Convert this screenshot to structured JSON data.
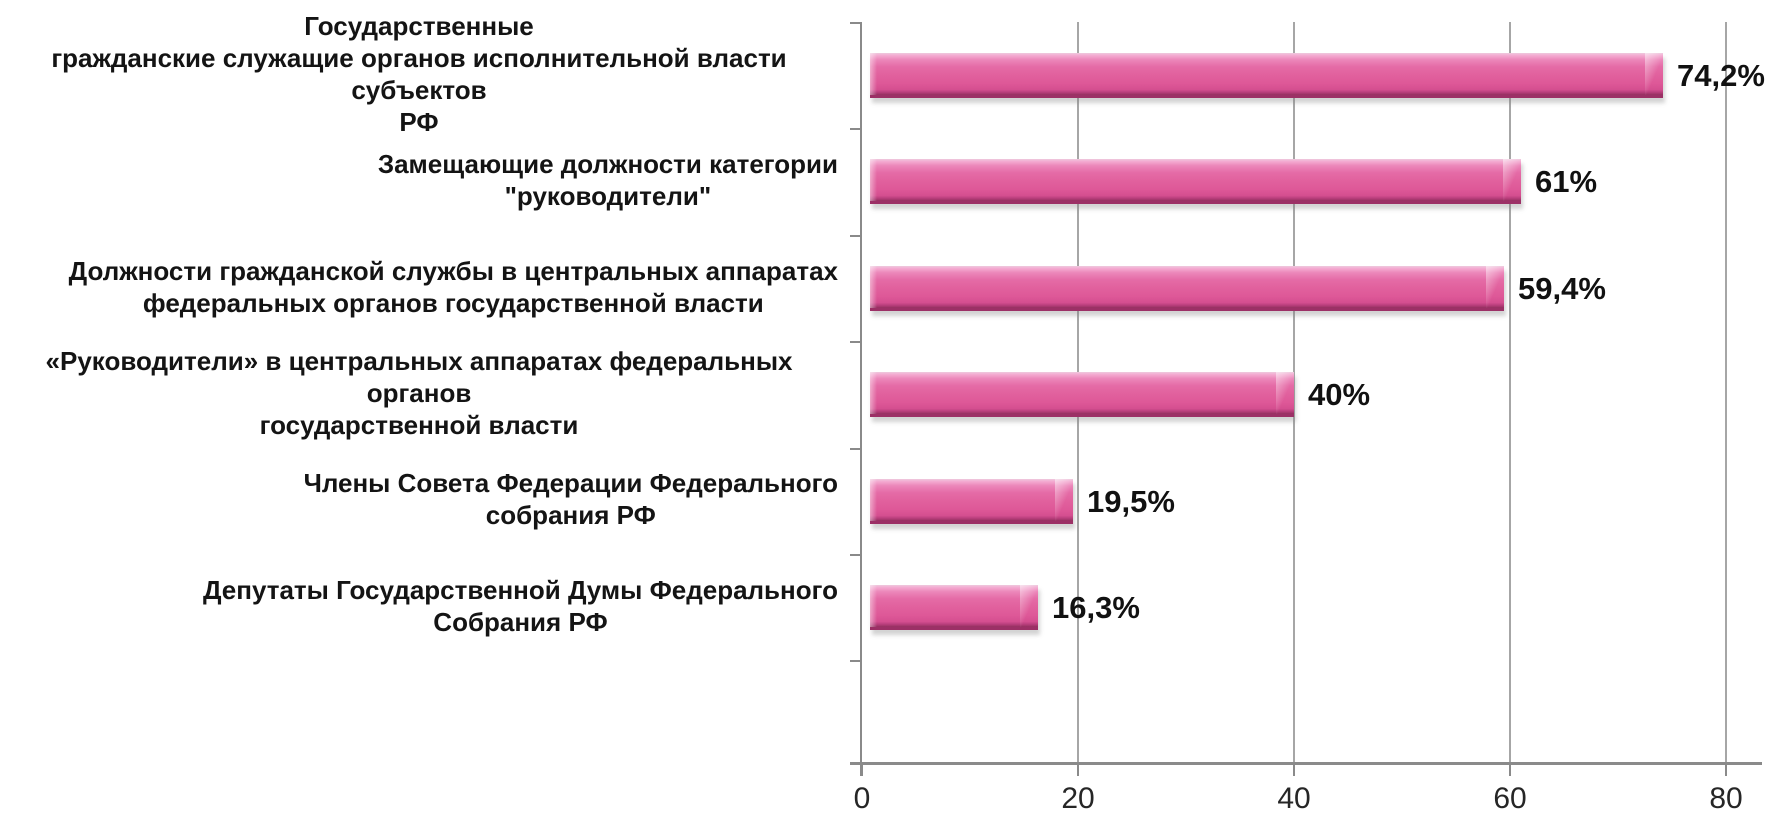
{
  "chart_data": {
    "type": "bar",
    "orientation": "horizontal",
    "title": "",
    "xlabel": "",
    "ylabel": "",
    "xlim": [
      0,
      80
    ],
    "grid": "vertical",
    "legend": "none",
    "bar_color": "#e2639f",
    "bar_edge_color": "#9c3066",
    "gridline_color": "#a6a6a6",
    "axis_color": "#8a8a8a",
    "categories": [
      "Государственные гражданские служащие органов исполнительной власти субъектов РФ",
      "Замещающие должности категории \"руководители\"",
      "Должности гражданской службы в центральных аппаратах федеральных органов государственной власти",
      "«Руководители» в центральных аппаратах федеральных органов государственной власти",
      "Члены Совета Федерации Федерального собрания РФ",
      "Депутаты Государственной Думы Федерального Собрания РФ"
    ],
    "categories_lines": [
      [
        "Государственные",
        "гражданские служащие органов исполнительной власти субъектов",
        "РФ"
      ],
      [
        "Замещающие должности категории",
        "\"руководители\""
      ],
      [
        "Должности гражданской службы в центральных аппаратах",
        "федеральных органов государственной власти"
      ],
      [
        "«Руководители» в центральных аппаратах федеральных органов",
        "государственной власти"
      ],
      [
        "Члены Совета Федерации Федерального",
        "собрания РФ"
      ],
      [
        "Депутаты Государственной Думы Федерального",
        "Собрания РФ"
      ]
    ],
    "values": [
      74.2,
      61,
      59.4,
      40,
      19.5,
      16.3
    ],
    "value_labels": [
      "74,2%",
      "61%",
      "59,4%",
      "40%",
      "19,5%",
      "16,3%"
    ],
    "x_tick_values": [
      0,
      20,
      40,
      60,
      80
    ],
    "x_ticks": [
      "0",
      "20",
      "40",
      "60",
      "80"
    ]
  }
}
